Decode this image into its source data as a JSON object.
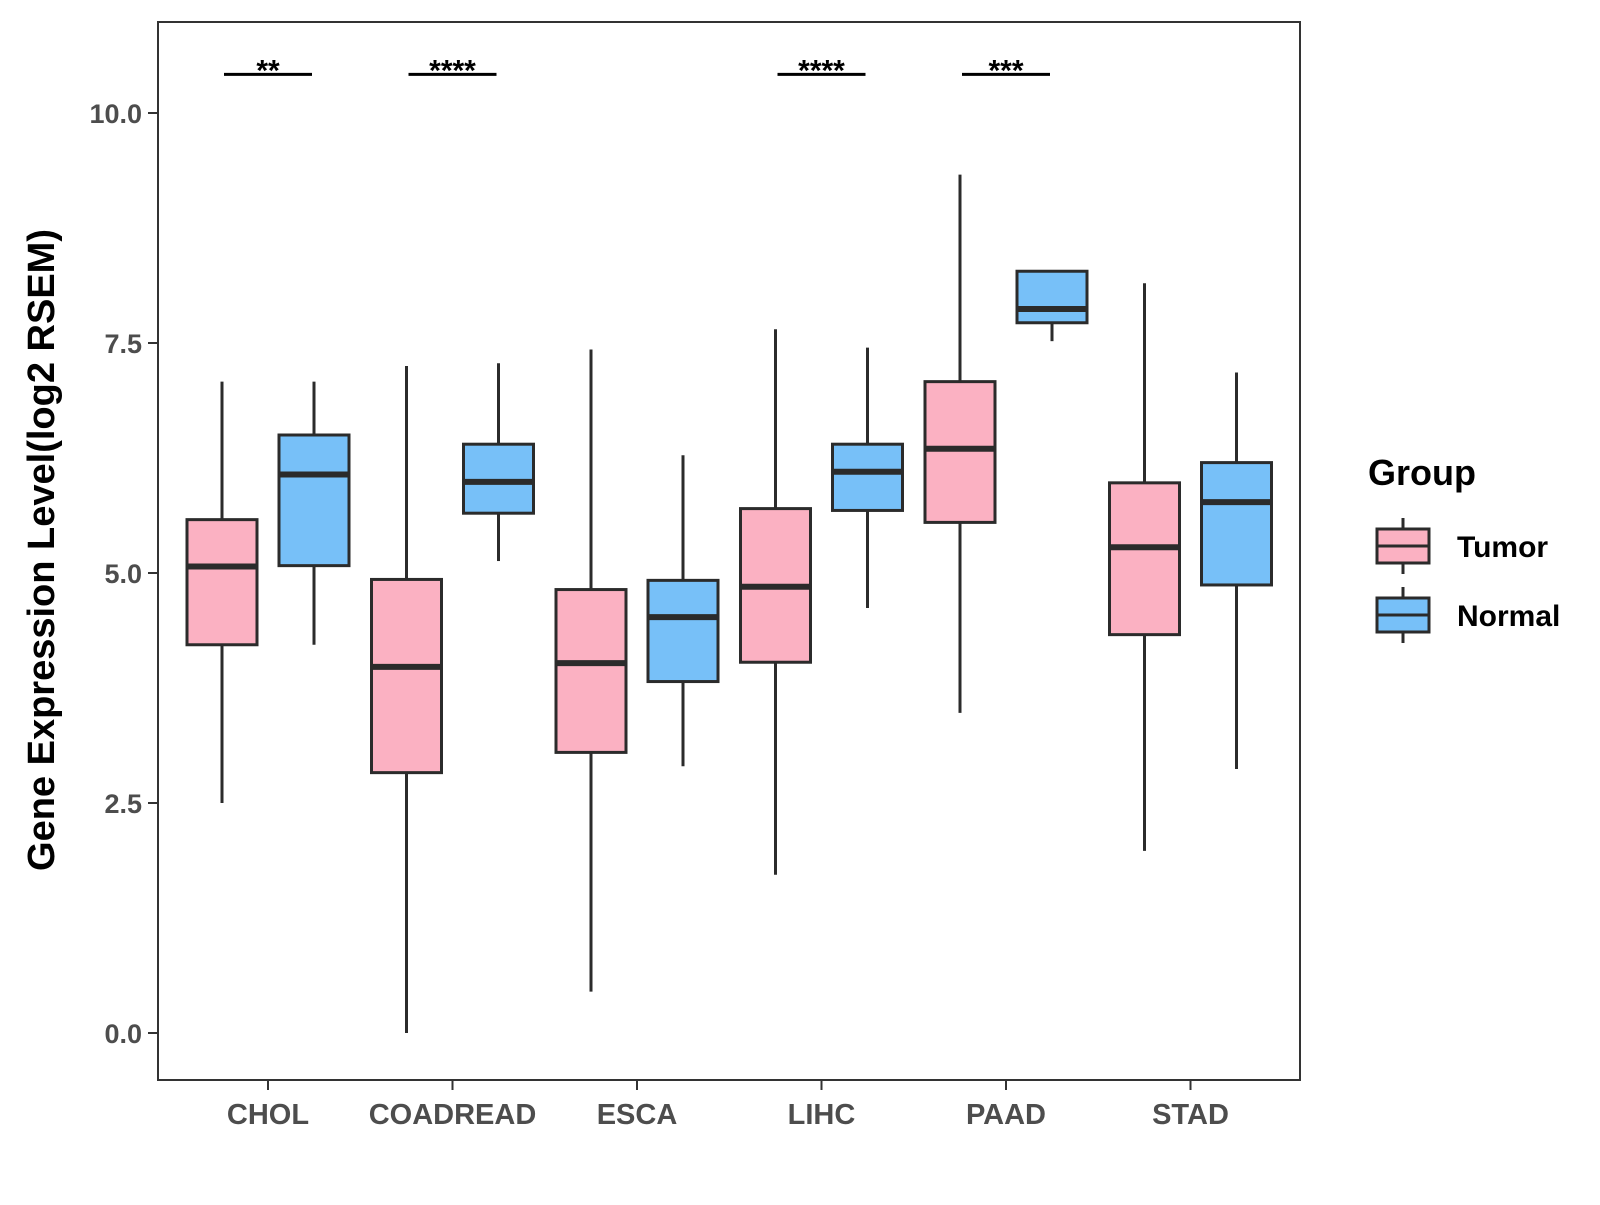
{
  "chart_data": {
    "type": "boxplot",
    "title": "",
    "xlabel": "",
    "ylabel": "Gene Expression Level(log2 RSEM)",
    "ylim": [
      -0.5,
      11.0
    ],
    "yticks": [
      {
        "value": 0.0,
        "label": "0.0"
      },
      {
        "value": 2.5,
        "label": "2.5"
      },
      {
        "value": 5.0,
        "label": "5.0"
      },
      {
        "value": 7.5,
        "label": "7.5"
      },
      {
        "value": 10.0,
        "label": "10.0"
      }
    ],
    "categories": [
      "CHOL",
      "COADREAD",
      "ESCA",
      "LIHC",
      "PAAD",
      "STAD"
    ],
    "legend": {
      "title": "Group",
      "position": "right",
      "entries": [
        {
          "name": "Tumor",
          "color": "#fbb1c2"
        },
        {
          "name": "Normal",
          "color": "#77c0f8"
        }
      ]
    },
    "series": [
      {
        "name": "Tumor",
        "color": "#fbb1c2",
        "boxes": [
          {
            "category": "CHOL",
            "min": 2.5,
            "q1": 4.22,
            "median": 5.07,
            "q3": 5.58,
            "max": 7.08
          },
          {
            "category": "COADREAD",
            "min": 0.0,
            "q1": 2.83,
            "median": 3.98,
            "q3": 4.93,
            "max": 7.25
          },
          {
            "category": "ESCA",
            "min": 0.45,
            "q1": 3.05,
            "median": 4.02,
            "q3": 4.82,
            "max": 7.43
          },
          {
            "category": "LIHC",
            "min": 1.72,
            "q1": 4.03,
            "median": 4.85,
            "q3": 5.7,
            "max": 7.65
          },
          {
            "category": "PAAD",
            "min": 3.48,
            "q1": 5.55,
            "median": 6.35,
            "q3": 7.08,
            "max": 9.33
          },
          {
            "category": "STAD",
            "min": 1.98,
            "q1": 4.33,
            "median": 5.28,
            "q3": 5.98,
            "max": 8.15
          }
        ]
      },
      {
        "name": "Normal",
        "color": "#77c0f8",
        "boxes": [
          {
            "category": "CHOL",
            "min": 4.22,
            "q1": 5.08,
            "median": 6.07,
            "q3": 6.5,
            "max": 7.08
          },
          {
            "category": "COADREAD",
            "min": 5.13,
            "q1": 5.65,
            "median": 5.99,
            "q3": 6.4,
            "max": 7.28
          },
          {
            "category": "ESCA",
            "min": 2.9,
            "q1": 3.82,
            "median": 4.52,
            "q3": 4.92,
            "max": 6.28
          },
          {
            "category": "LIHC",
            "min": 4.62,
            "q1": 5.68,
            "median": 6.1,
            "q3": 6.4,
            "max": 7.45
          },
          {
            "category": "PAAD",
            "min": 7.52,
            "q1": 7.72,
            "median": 7.87,
            "q3": 8.28,
            "max": 8.28
          },
          {
            "category": "STAD",
            "min": 2.87,
            "q1": 4.87,
            "median": 5.77,
            "q3": 6.2,
            "max": 7.18
          }
        ]
      }
    ],
    "significance": [
      {
        "category": "CHOL",
        "label": "**",
        "value": 10.42
      },
      {
        "category": "COADREAD",
        "label": "****",
        "value": 10.42
      },
      {
        "category": "LIHC",
        "label": "****",
        "value": 10.42
      },
      {
        "category": "PAAD",
        "label": "***",
        "value": 10.42
      }
    ]
  }
}
